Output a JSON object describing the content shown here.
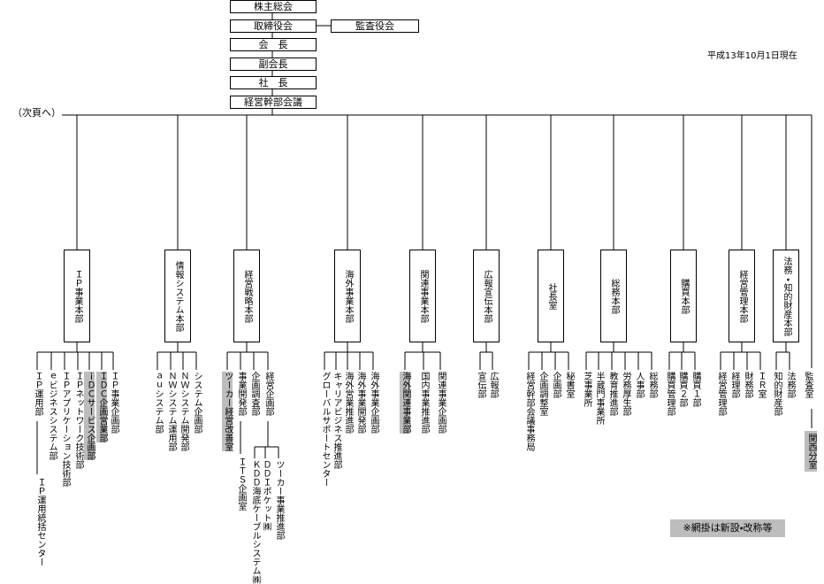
{
  "header": {
    "date": "平成13年10月1日現在",
    "continued": "（次頁へ）"
  },
  "top": {
    "chain": [
      "株主総会",
      "取締役会",
      "会　長",
      "副会長",
      "社　長",
      "経営幹部会議"
    ],
    "auditors": "監査役会"
  },
  "divisions": [
    {
      "label": "ＩＰ事業本部",
      "children": [
        {
          "label": "ＩＰ運用部",
          "subs": [
            "ＩＰ運用統括センター"
          ]
        },
        {
          "label": "ｅビジネスシステム部"
        },
        {
          "label": "ＩＰアプリケーション技術部"
        },
        {
          "label": "ＩＰネットワーク技術部"
        },
        {
          "label": "ｉＤＣサービス企画部",
          "shaded": true
        },
        {
          "label": "ＩＤＣ企画営業部",
          "shaded": true
        },
        {
          "label": "ＩＰ事業企画部"
        }
      ]
    },
    {
      "label": "情報システム本部",
      "children": [
        {
          "label": "ａｕシステム部"
        },
        {
          "label": "ＮＷシステム運用部"
        },
        {
          "label": "ＮＷシステム開発部"
        },
        {
          "label": "システム企画部"
        }
      ]
    },
    {
      "label": "経営戦略本部",
      "children": [
        {
          "label": "ツーカー経営改善室",
          "shaded": true
        },
        {
          "label": "事業開発部",
          "subs": [
            "ＩＴＳ企画室"
          ]
        },
        {
          "label": "企画調査部"
        },
        {
          "label": "経営企画部",
          "subs": [
            "ＫＤＤ海底ケーブルシステム㈱",
            "ＤＤＩポケット㈱",
            "ツーカー事業推進部"
          ]
        }
      ]
    },
    {
      "label": "海外事業本部",
      "children": [
        {
          "label": "グローバルサポートセンター"
        },
        {
          "label": "キャリアビジネス推進部"
        },
        {
          "label": "海外営業推進部"
        },
        {
          "label": "海外事業開発部"
        },
        {
          "label": "海外事業企画部"
        }
      ]
    },
    {
      "label": "関連事業本部",
      "children": [
        {
          "label": "海外関連事業部",
          "shaded": true
        },
        {
          "label": "国内事業推進部"
        },
        {
          "label": "関連事業企画部"
        }
      ]
    },
    {
      "label": "広報宣伝本部",
      "children": [
        {
          "label": "宣伝部"
        },
        {
          "label": "広報部"
        }
      ]
    },
    {
      "label": "社長室",
      "children": [
        {
          "label": "経営幹部会議事務局"
        },
        {
          "label": "企画調整室"
        },
        {
          "label": "企画部"
        },
        {
          "label": "秘書室"
        }
      ]
    },
    {
      "label": "総務本部",
      "children": [
        {
          "label": "芝事業所"
        },
        {
          "label": "半蔵門事業所"
        },
        {
          "label": "教育推進部"
        },
        {
          "label": "労務厚生部"
        },
        {
          "label": "人事部"
        },
        {
          "label": "総務部"
        }
      ]
    },
    {
      "label": "購買本部",
      "children": [
        {
          "label": "購買管理部"
        },
        {
          "label": "購買２部"
        },
        {
          "label": "購買１部"
        }
      ]
    },
    {
      "label": "経営管理本部",
      "children": [
        {
          "label": "経営管理部"
        },
        {
          "label": "経理部"
        },
        {
          "label": "財務部"
        },
        {
          "label": "ＩＲ室"
        }
      ]
    },
    {
      "label": "法務・知的財産本部",
      "children": [
        {
          "label": "知的財産部"
        },
        {
          "label": "法務部"
        }
      ]
    }
  ],
  "audit_office": {
    "label": "監査室",
    "branch": {
      "label": "関西分室",
      "shaded": true
    }
  },
  "note": {
    "label": "※網掛は新設・改称等",
    "shaded": true
  }
}
